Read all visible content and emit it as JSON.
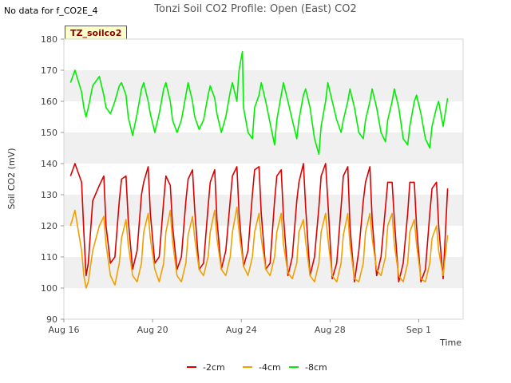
{
  "no_data_text": "No data for f_CO2E_4",
  "badge_label": "TZ_soilco2",
  "chart_data": {
    "type": "line",
    "title": "Tonzi Soil CO2 Profile: Open (East) CO2",
    "xlabel": "Time",
    "ylabel": "Soil CO2 (mV)",
    "ylim": [
      90,
      180
    ],
    "yticks": [
      90,
      100,
      110,
      120,
      130,
      140,
      150,
      160,
      170,
      180
    ],
    "xlim": [
      0,
      18
    ],
    "xticks": [
      {
        "value": 0,
        "label": "Aug 16"
      },
      {
        "value": 4,
        "label": "Aug 20"
      },
      {
        "value": 8,
        "label": "Aug 24"
      },
      {
        "value": 12,
        "label": "Aug 28"
      },
      {
        "value": 16,
        "label": "Sep 1"
      }
    ],
    "legend_position": "bottom",
    "series": [
      {
        "name": "-2cm",
        "color": "#dd0000",
        "x": [
          0.3,
          0.5,
          0.8,
          0.9,
          1.0,
          1.1,
          1.3,
          1.6,
          1.8,
          1.9,
          2.1,
          2.3,
          2.5,
          2.6,
          2.8,
          2.9,
          3.1,
          3.3,
          3.5,
          3.6,
          3.8,
          3.9,
          4.1,
          4.3,
          4.5,
          4.6,
          4.8,
          4.9,
          5.1,
          5.3,
          5.5,
          5.6,
          5.8,
          5.9,
          6.1,
          6.3,
          6.5,
          6.6,
          6.8,
          6.9,
          7.1,
          7.3,
          7.5,
          7.6,
          7.8,
          7.9,
          8.1,
          8.3,
          8.5,
          8.6,
          8.8,
          8.9,
          9.1,
          9.3,
          9.5,
          9.6,
          9.8,
          9.9,
          10.1,
          10.3,
          10.5,
          10.6,
          10.8,
          10.9,
          11.1,
          11.3,
          11.5,
          11.6,
          11.8,
          11.9,
          12.1,
          12.3,
          12.5,
          12.6,
          12.8,
          12.9,
          13.1,
          13.3,
          13.5,
          13.6,
          13.8,
          13.9,
          14.1,
          14.3,
          14.5,
          14.6,
          14.8,
          14.9,
          15.1,
          15.3,
          15.5,
          15.6,
          15.8,
          15.9,
          16.1,
          16.3,
          16.5,
          16.6,
          16.8,
          16.9,
          17.1,
          17.3
        ],
        "y": [
          136,
          140,
          134,
          118,
          104,
          108,
          128,
          133,
          136,
          120,
          108,
          110,
          128,
          135,
          136,
          122,
          106,
          112,
          130,
          134,
          139,
          124,
          108,
          110,
          128,
          136,
          133,
          120,
          106,
          110,
          128,
          135,
          138,
          125,
          106,
          108,
          126,
          134,
          138,
          122,
          106,
          112,
          128,
          136,
          139,
          124,
          107,
          112,
          130,
          138,
          139,
          124,
          106,
          108,
          128,
          136,
          138,
          123,
          104,
          110,
          128,
          134,
          140,
          126,
          104,
          110,
          126,
          136,
          140,
          128,
          103,
          108,
          126,
          136,
          139,
          120,
          102,
          112,
          128,
          134,
          139,
          122,
          104,
          110,
          126,
          134,
          134,
          122,
          102,
          108,
          124,
          134,
          134,
          120,
          102,
          106,
          124,
          132,
          134,
          120,
          103,
          132
        ]
      },
      {
        "name": "-4cm",
        "color": "#f0a000",
        "x": [
          0.3,
          0.5,
          0.8,
          0.9,
          1.0,
          1.1,
          1.3,
          1.6,
          1.8,
          1.9,
          2.1,
          2.3,
          2.5,
          2.6,
          2.8,
          2.9,
          3.1,
          3.3,
          3.5,
          3.6,
          3.8,
          3.9,
          4.1,
          4.3,
          4.5,
          4.6,
          4.8,
          4.9,
          5.1,
          5.3,
          5.5,
          5.6,
          5.8,
          5.9,
          6.1,
          6.3,
          6.5,
          6.6,
          6.8,
          6.9,
          7.1,
          7.3,
          7.5,
          7.6,
          7.8,
          7.9,
          8.1,
          8.3,
          8.5,
          8.6,
          8.8,
          8.9,
          9.1,
          9.3,
          9.5,
          9.6,
          9.8,
          9.9,
          10.1,
          10.3,
          10.5,
          10.6,
          10.8,
          10.9,
          11.1,
          11.3,
          11.5,
          11.6,
          11.8,
          11.9,
          12.1,
          12.3,
          12.5,
          12.6,
          12.8,
          12.9,
          13.1,
          13.3,
          13.5,
          13.6,
          13.8,
          13.9,
          14.1,
          14.3,
          14.5,
          14.6,
          14.8,
          14.9,
          15.1,
          15.3,
          15.5,
          15.6,
          15.8,
          15.9,
          16.1,
          16.3,
          16.5,
          16.6,
          16.8,
          16.9,
          17.1,
          17.3
        ],
        "y": [
          120,
          125,
          112,
          104,
          100,
          102,
          112,
          120,
          123,
          114,
          104,
          101,
          108,
          116,
          122,
          114,
          104,
          102,
          108,
          118,
          124,
          116,
          106,
          102,
          108,
          118,
          125,
          115,
          104,
          102,
          108,
          117,
          123,
          116,
          106,
          104,
          110,
          118,
          125,
          116,
          106,
          104,
          110,
          118,
          126,
          118,
          107,
          104,
          110,
          118,
          124,
          116,
          106,
          104,
          110,
          118,
          124,
          114,
          105,
          103,
          108,
          118,
          122,
          115,
          104,
          102,
          108,
          118,
          124,
          116,
          104,
          102,
          108,
          117,
          124,
          114,
          103,
          102,
          108,
          118,
          124,
          116,
          106,
          104,
          110,
          120,
          124,
          114,
          104,
          102,
          108,
          118,
          122,
          114,
          103,
          102,
          108,
          116,
          120,
          112,
          104,
          117
        ]
      },
      {
        "name": "-8cm",
        "color": "#00ee00",
        "x": [
          0.3,
          0.5,
          0.8,
          0.9,
          1.0,
          1.1,
          1.3,
          1.6,
          1.8,
          1.9,
          2.1,
          2.3,
          2.5,
          2.6,
          2.8,
          2.9,
          3.1,
          3.3,
          3.5,
          3.6,
          3.8,
          3.9,
          4.1,
          4.3,
          4.5,
          4.6,
          4.8,
          4.9,
          5.1,
          5.3,
          5.5,
          5.6,
          5.8,
          5.9,
          6.1,
          6.3,
          6.5,
          6.6,
          6.8,
          6.9,
          7.1,
          7.3,
          7.5,
          7.6,
          7.8,
          7.9,
          8.05,
          8.1,
          8.3,
          8.5,
          8.6,
          8.8,
          8.9,
          9.1,
          9.3,
          9.5,
          9.6,
          9.8,
          9.9,
          10.1,
          10.3,
          10.5,
          10.6,
          10.8,
          10.9,
          11.1,
          11.3,
          11.5,
          11.6,
          11.8,
          11.9,
          12.1,
          12.3,
          12.5,
          12.6,
          12.8,
          12.9,
          13.1,
          13.3,
          13.5,
          13.6,
          13.8,
          13.9,
          14.1,
          14.3,
          14.5,
          14.6,
          14.8,
          14.9,
          15.1,
          15.3,
          15.5,
          15.6,
          15.8,
          15.9,
          16.1,
          16.3,
          16.5,
          16.6,
          16.8,
          16.9,
          17.1,
          17.3
        ],
        "y": [
          166,
          170,
          163,
          158,
          155,
          158,
          165,
          168,
          162,
          158,
          156,
          160,
          165,
          166,
          162,
          155,
          149,
          156,
          164,
          166,
          160,
          156,
          150,
          156,
          164,
          166,
          160,
          154,
          150,
          154,
          162,
          166,
          160,
          155,
          151,
          154,
          162,
          165,
          161,
          156,
          150,
          155,
          163,
          166,
          160,
          170,
          176,
          158,
          150,
          148,
          158,
          162,
          166,
          160,
          153,
          146,
          154,
          162,
          166,
          160,
          154,
          148,
          154,
          162,
          164,
          158,
          148,
          143,
          152,
          160,
          166,
          160,
          154,
          150,
          154,
          160,
          164,
          158,
          150,
          148,
          154,
          160,
          164,
          158,
          150,
          147,
          154,
          160,
          164,
          158,
          148,
          146,
          152,
          160,
          162,
          156,
          148,
          145,
          152,
          158,
          160,
          152,
          161
        ]
      }
    ]
  }
}
